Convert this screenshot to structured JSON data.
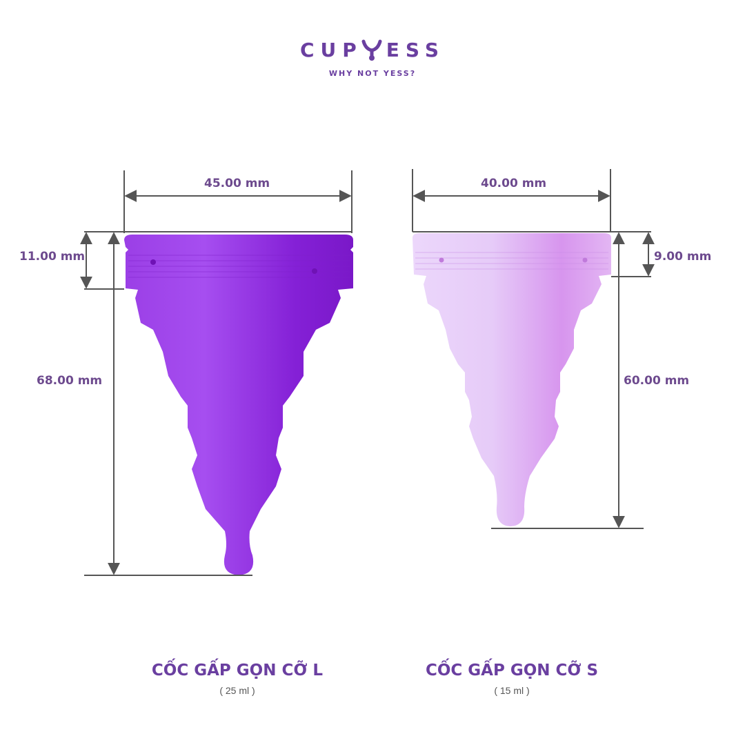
{
  "brand": {
    "name_left": "CUP",
    "name_right": "ESS",
    "logo_icon": "y-drop-icon",
    "tagline": "WHY NOT YESS?",
    "color": "#6a3fa0"
  },
  "cups": [
    {
      "width_label": "45.00 mm",
      "rim_label": "11.00 mm",
      "height_label": "68.00 mm",
      "title": "CỐC GẤP GỌN CỠ L",
      "volume": "( 25 ml )",
      "color": "#8a2be2"
    },
    {
      "width_label": "40.00 mm",
      "rim_label": "9.00 mm",
      "height_label": "60.00 mm",
      "title": "CỐC GẤP GỌN CỠ S",
      "volume": "( 15 ml )",
      "color": "#e2b8f5"
    }
  ]
}
